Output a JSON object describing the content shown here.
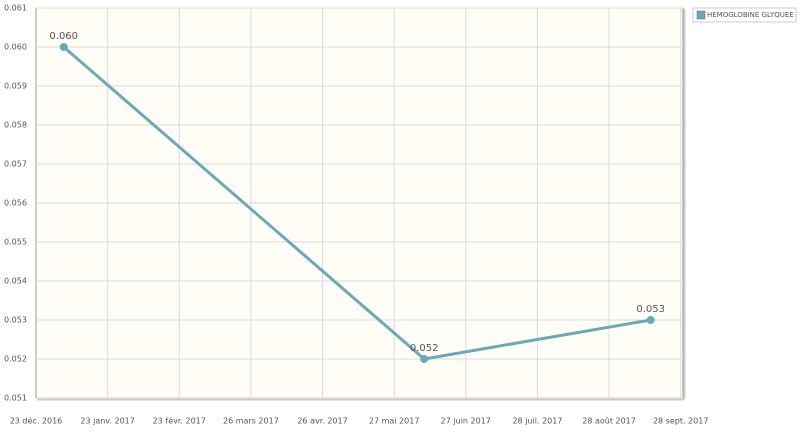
{
  "chart_data": {
    "type": "line",
    "x": [
      "2017-01-04",
      "2017-06-09",
      "2017-09-15"
    ],
    "series": [
      {
        "name": "HEMOGLOBINE GLYQUEE",
        "color": "#6aa9b8",
        "values": [
          0.06,
          0.052,
          0.053
        ],
        "value_labels": [
          "0.060",
          "0.052",
          "0.053"
        ]
      }
    ],
    "xlim": [
      "2016-12-23",
      "2017-09-29"
    ],
    "xticks": [
      {
        "value": "2016-12-23",
        "label": "23 déc. 2016"
      },
      {
        "value": "2017-01-23",
        "label": "23 janv. 2017"
      },
      {
        "value": "2017-02-23",
        "label": "23 févr. 2017"
      },
      {
        "value": "2017-03-26",
        "label": "26 mars 2017"
      },
      {
        "value": "2017-04-26",
        "label": "26 avr. 2017"
      },
      {
        "value": "2017-05-27",
        "label": "27 mai 2017"
      },
      {
        "value": "2017-06-27",
        "label": "27 juin 2017"
      },
      {
        "value": "2017-07-28",
        "label": "28 juil. 2017"
      },
      {
        "value": "2017-08-28",
        "label": "28 août 2017"
      },
      {
        "value": "2017-09-28",
        "label": "28 sept. 2017"
      }
    ],
    "ylim": [
      0.051,
      0.061
    ],
    "yticks": [
      0.051,
      0.052,
      0.053,
      0.054,
      0.055,
      0.056,
      0.057,
      0.058,
      0.059,
      {
        "value": 0.06,
        "label": "0.060"
      },
      0.061
    ],
    "grid": true,
    "legend": "top-right"
  }
}
